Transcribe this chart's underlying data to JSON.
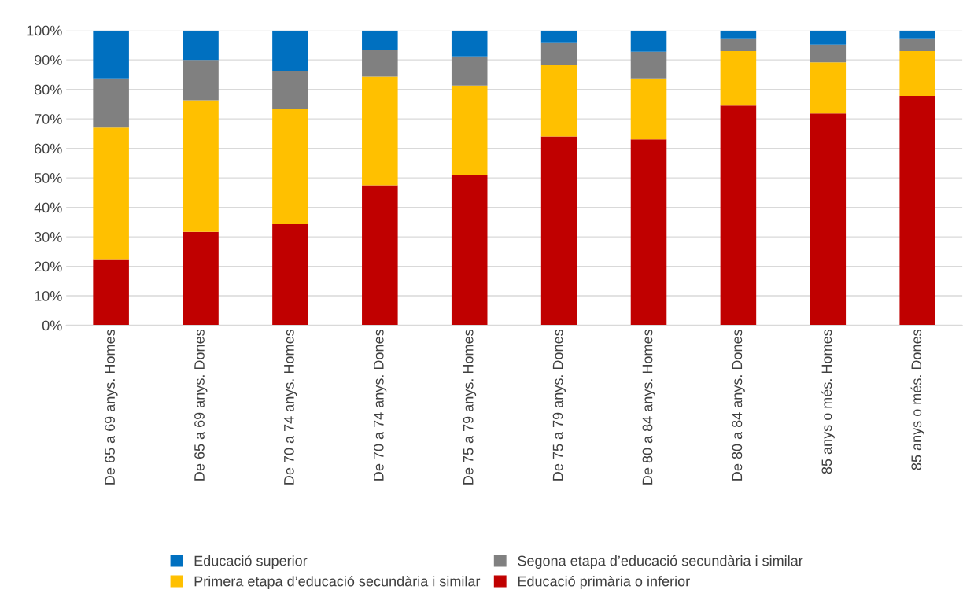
{
  "chart_data": {
    "type": "bar",
    "stacked": true,
    "categories": [
      "De 65 a 69 anys. Homes",
      "De 65 a 69 anys. Dones",
      "De 70 a 74 anys. Homes",
      "De 70 a 74 anys. Dones",
      "De 75 a 79 anys. Homes",
      "De 75 a 79 anys. Dones",
      "De 80 a 84 anys. Homes",
      "De 80 a 84 anys. Dones",
      "85 anys o més. Homes",
      "85 anys o més. Dones"
    ],
    "series": [
      {
        "name": "Educació primària o inferior",
        "color": "#c00000",
        "values": [
          22.4,
          31.7,
          34.3,
          47.5,
          51,
          64,
          63,
          74.5,
          71.8,
          77.8
        ]
      },
      {
        "name": "Primera etapa d’educació secundària i similar",
        "color": "#ffc000",
        "values": [
          44.6,
          44.6,
          39.2,
          36.8,
          30.3,
          24.2,
          20.7,
          18.5,
          17.4,
          15.2
        ]
      },
      {
        "name": "Segona etapa d’educació secundària i similar",
        "color": "#808080",
        "values": [
          16.7,
          13.7,
          12.8,
          9,
          9.9,
          7.5,
          9.1,
          4.3,
          6,
          4.3
        ]
      },
      {
        "name": "Educació superior",
        "color": "#0070c0",
        "values": [
          16.3,
          10,
          13.7,
          6.7,
          8.8,
          4.3,
          7.2,
          2.7,
          4.8,
          2.7
        ]
      }
    ],
    "ylim": [
      0,
      100
    ],
    "yticks": [
      {
        "value": 0,
        "label": "0%"
      },
      {
        "value": 10,
        "label": "10%"
      },
      {
        "value": 20,
        "label": "20%"
      },
      {
        "value": 30,
        "label": "30%"
      },
      {
        "value": 40,
        "label": "40%"
      },
      {
        "value": 50,
        "label": "50%"
      },
      {
        "value": 60,
        "label": "60%"
      },
      {
        "value": 70,
        "label": "70%"
      },
      {
        "value": 80,
        "label": "80%"
      },
      {
        "value": 90,
        "label": "90%"
      },
      {
        "value": 100,
        "label": "100%"
      }
    ],
    "grid": "y",
    "legend": "bottom"
  }
}
